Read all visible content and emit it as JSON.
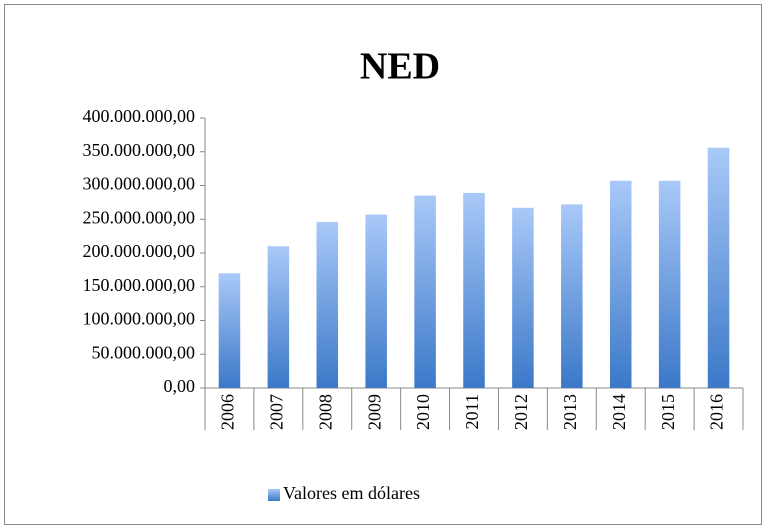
{
  "chart_data": {
    "type": "bar",
    "title": "NED",
    "categories": [
      "2006",
      "2007",
      "2008",
      "2009",
      "2010",
      "2011",
      "2012",
      "2013",
      "2014",
      "2015",
      "2016"
    ],
    "series": [
      {
        "name": "Valores em dólares",
        "color": "#3b78c8",
        "values": [
          170000000,
          210000000,
          246000000,
          257000000,
          285000000,
          289000000,
          267000000,
          272000000,
          307000000,
          307000000,
          356000000
        ]
      }
    ],
    "ylim": [
      0,
      400000000
    ],
    "yticks": [
      {
        "value": 0,
        "label": "0,00"
      },
      {
        "value": 50000000,
        "label": "50.000.000,00"
      },
      {
        "value": 100000000,
        "label": "100.000.000,00"
      },
      {
        "value": 150000000,
        "label": "150.000.000,00"
      },
      {
        "value": 200000000,
        "label": "200.000.000,00"
      },
      {
        "value": 250000000,
        "label": "250.000.000,00"
      },
      {
        "value": 300000000,
        "label": "300.000.000,00"
      },
      {
        "value": 350000000,
        "label": "350.000.000,00"
      },
      {
        "value": 400000000,
        "label": "400.000.000,00"
      }
    ],
    "grid": false,
    "legend": "bottom"
  }
}
